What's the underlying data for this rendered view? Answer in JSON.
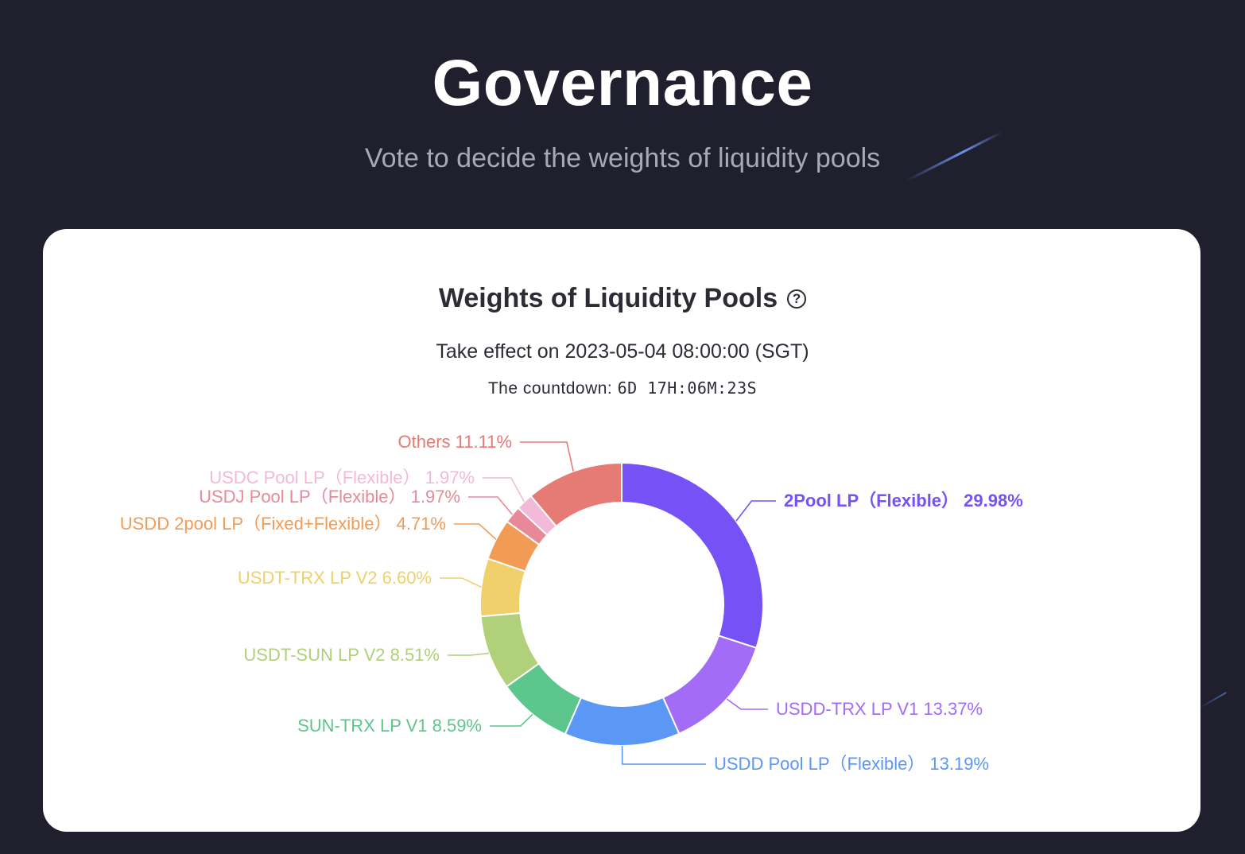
{
  "header": {
    "title": "Governance",
    "subtitle": "Vote to decide the weights of liquidity pools"
  },
  "card": {
    "title": "Weights of Liquidity Pools",
    "help_icon": "question-circle-icon",
    "effect_text": "Take effect on 2023-05-04 08:00:00 (SGT)",
    "countdown_label": "The countdown:",
    "countdown_value": "6D 17H:06M:23S"
  },
  "chart_data": {
    "type": "pie",
    "variant": "donut",
    "slices": [
      {
        "label": "2Pool LP（Flexible）",
        "value": 29.98,
        "display": "2Pool LP（Flexible） 29.98%",
        "color": "#7652f6"
      },
      {
        "label": "USDD-TRX LP V1",
        "value": 13.37,
        "display": "USDD-TRX LP V1 13.37%",
        "color": "#a26cf7"
      },
      {
        "label": "USDD Pool LP（Flexible）",
        "value": 13.19,
        "display": "USDD Pool LP（Flexible） 13.19%",
        "color": "#5b97f4"
      },
      {
        "label": "SUN-TRX LP V1",
        "value": 8.59,
        "display": "SUN-TRX LP V1 8.59%",
        "color": "#5dc68c"
      },
      {
        "label": "USDT-SUN LP V2",
        "value": 8.51,
        "display": "USDT-SUN LP V2 8.51%",
        "color": "#b0d07a"
      },
      {
        "label": "USDT-TRX LP V2",
        "value": 6.6,
        "display": "USDT-TRX LP V2 6.60%",
        "color": "#f0d06a"
      },
      {
        "label": "USDD 2pool LP（Fixed+Flexible）",
        "value": 4.71,
        "display": "USDD 2pool LP（Fixed+Flexible） 4.71%",
        "color": "#f29b55"
      },
      {
        "label": "USDJ Pool LP（Flexible）",
        "value": 1.97,
        "display": "USDJ Pool LP（Flexible） 1.97%",
        "color": "#e8899a"
      },
      {
        "label": "USDC Pool LP（Flexible）",
        "value": 1.97,
        "display": "USDC Pool LP（Flexible） 1.97%",
        "color": "#f2b9d8"
      },
      {
        "label": "Others",
        "value": 11.11,
        "display": "Others 11.11%",
        "color": "#e67a74"
      }
    ]
  }
}
